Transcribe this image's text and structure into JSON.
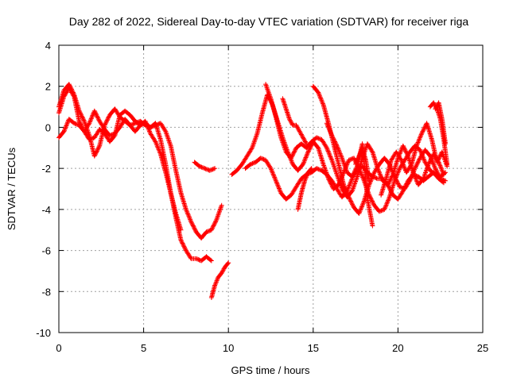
{
  "chart_data": {
    "type": "scatter",
    "title": "Day 282 of 2022, Sidereal Day-to-day VTEC variation (SDTVAR) for receiver riga",
    "xlabel": "GPS time / hours",
    "ylabel": "SDTVAR / TECUs",
    "xlim": [
      0,
      25
    ],
    "ylim": [
      -10,
      4
    ],
    "xticks": [
      0,
      5,
      10,
      15,
      20,
      25
    ],
    "yticks": [
      -10,
      -8,
      -6,
      -4,
      -2,
      0,
      2,
      4
    ],
    "grid": true,
    "marker": "+",
    "marker_color": "#ff0000",
    "series": [
      {
        "name": "track-a",
        "x": [
          0.0,
          0.3,
          0.6,
          0.9,
          1.2,
          1.5,
          1.8,
          2.1,
          2.4,
          2.7,
          3.0,
          3.3,
          3.6,
          3.9,
          4.2,
          4.5,
          4.8,
          5.1,
          5.4,
          5.7,
          6.0,
          6.3,
          6.6,
          6.9,
          7.2,
          7.5,
          7.8,
          8.1,
          8.4,
          8.7,
          9.0
        ],
        "y": [
          1.0,
          1.8,
          2.1,
          1.6,
          0.8,
          0.3,
          -0.4,
          -1.4,
          -0.9,
          0.1,
          0.6,
          0.9,
          0.5,
          0.3,
          0.1,
          0.2,
          0.3,
          0.1,
          0.0,
          0.2,
          -0.6,
          -1.8,
          -3.2,
          -4.4,
          -5.5,
          -6.0,
          -6.4,
          -6.4,
          -6.5,
          -6.3,
          -6.5
        ]
      },
      {
        "name": "track-b",
        "x": [
          0.0,
          0.3,
          0.6,
          0.9,
          1.2,
          1.5,
          1.8,
          2.1,
          2.4,
          2.7,
          3.0,
          3.3,
          3.6,
          3.9,
          4.2,
          4.5,
          4.8,
          5.1,
          5.4,
          5.7,
          6.0,
          6.3,
          6.6,
          6.9,
          7.2,
          7.5,
          7.8,
          8.1,
          8.4,
          8.7,
          9.0,
          9.3,
          9.6
        ],
        "y": [
          0.7,
          1.5,
          1.9,
          1.5,
          0.3,
          -0.2,
          0.2,
          0.8,
          0.3,
          -0.1,
          -0.4,
          -0.3,
          0.0,
          0.4,
          0.1,
          -0.2,
          0.1,
          0.2,
          0.0,
          0.1,
          0.2,
          -0.2,
          -0.9,
          -2.1,
          -3.2,
          -4.0,
          -4.6,
          -5.1,
          -5.4,
          -5.1,
          -5.0,
          -4.5,
          -3.8
        ]
      },
      {
        "name": "track-c",
        "x": [
          0.0,
          0.3,
          0.6,
          0.9,
          1.2,
          1.5,
          1.8,
          2.1,
          2.4,
          2.7,
          3.0,
          3.3,
          3.6,
          3.9,
          4.2,
          4.5,
          4.8,
          5.1,
          5.4,
          5.7,
          6.0,
          6.3,
          6.6,
          6.9,
          7.2
        ],
        "y": [
          -0.5,
          -0.2,
          0.4,
          0.2,
          0.1,
          -0.2,
          -0.6,
          -0.5,
          -0.1,
          -0.3,
          -0.7,
          -0.4,
          0.6,
          0.8,
          0.6,
          0.3,
          0.1,
          0.3,
          -0.3,
          -0.7,
          -1.3,
          -2.2,
          -3.2,
          -4.2,
          -5.0
        ]
      },
      {
        "name": "track-d",
        "x": [
          8.0,
          8.3,
          8.6,
          8.9,
          9.2
        ],
        "y": [
          -1.7,
          -1.9,
          -2.0,
          -2.1,
          -2.0
        ]
      },
      {
        "name": "track-e",
        "x": [
          9.0,
          9.2,
          9.4,
          9.6,
          9.8,
          10.0
        ],
        "y": [
          -8.3,
          -7.7,
          -7.3,
          -7.1,
          -6.8,
          -6.6
        ]
      },
      {
        "name": "track-f",
        "x": [
          10.2,
          10.5,
          10.8,
          11.1,
          11.4,
          11.7,
          12.0,
          12.3,
          12.6,
          12.9,
          13.2,
          13.5,
          13.8,
          14.1,
          14.4,
          14.7,
          15.0,
          15.3,
          15.6,
          15.9,
          16.2,
          16.5,
          16.8,
          17.1,
          17.4,
          17.7,
          18.0,
          18.3,
          18.6,
          18.9,
          19.2,
          19.5,
          19.8,
          20.1,
          20.4,
          20.7,
          21.0,
          21.3,
          21.6,
          21.9,
          22.2,
          22.5,
          22.8
        ],
        "y": [
          -2.3,
          -2.1,
          -1.8,
          -1.4,
          -1.0,
          -0.3,
          0.7,
          1.6,
          1.1,
          0.3,
          -0.5,
          -1.2,
          -1.8,
          -2.1,
          -1.8,
          -1.2,
          -0.7,
          -1.0,
          -1.8,
          -2.5,
          -3.0,
          -2.8,
          -2.2,
          -1.6,
          -1.5,
          -2.0,
          -2.6,
          -3.3,
          -3.8,
          -4.1,
          -4.0,
          -3.4,
          -2.6,
          -2.0,
          -1.6,
          -1.2,
          -0.9,
          -1.1,
          -1.7,
          -2.1,
          -2.3,
          -2.4,
          -2.2
        ]
      },
      {
        "name": "track-g",
        "x": [
          11.0,
          11.3,
          11.6,
          11.9,
          12.2,
          12.5,
          12.8,
          13.1,
          13.4,
          13.7,
          14.0,
          14.3,
          14.6,
          14.9,
          15.2,
          15.5,
          15.8,
          16.1,
          16.4,
          16.7,
          17.0,
          17.3,
          17.6,
          17.9,
          18.2,
          18.5,
          18.8,
          19.1,
          19.4,
          19.7,
          20.0,
          20.3,
          20.6,
          20.9,
          21.2,
          21.5,
          21.8,
          22.1,
          22.4,
          22.7
        ],
        "y": [
          -2.0,
          -1.8,
          -1.7,
          -1.5,
          -1.6,
          -2.0,
          -2.6,
          -3.2,
          -3.5,
          -3.3,
          -2.9,
          -2.5,
          -2.3,
          -2.2,
          -2.0,
          -2.1,
          -2.3,
          -2.6,
          -3.0,
          -3.4,
          -3.1,
          -2.5,
          -2.0,
          -1.9,
          -2.2,
          -2.4,
          -2.5,
          -2.5,
          -2.8,
          -3.3,
          -3.5,
          -3.1,
          -2.6,
          -2.3,
          -2.4,
          -2.6,
          -2.4,
          -2.2,
          -2.5,
          -2.7
        ]
      },
      {
        "name": "track-h",
        "x": [
          12.2,
          12.5,
          12.8,
          13.1,
          13.4,
          13.7,
          14.0,
          14.3,
          14.6,
          14.9,
          15.2,
          15.5,
          15.8,
          16.1,
          16.4,
          16.7,
          17.0,
          17.3,
          17.6,
          17.9,
          18.2,
          18.5,
          18.8,
          19.1,
          19.4,
          19.7,
          20.0,
          20.3,
          20.6,
          20.9,
          21.2,
          21.5,
          21.8,
          22.1,
          22.4,
          22.7
        ],
        "y": [
          2.1,
          1.4,
          0.5,
          -0.5,
          -1.2,
          -1.5,
          -1.0,
          -0.8,
          -1.0,
          -0.7,
          -0.5,
          -0.6,
          -1.0,
          -1.6,
          -2.3,
          -3.0,
          -3.4,
          -3.1,
          -2.4,
          -1.5,
          -0.8,
          -1.2,
          -2.0,
          -2.6,
          -2.8,
          -2.3,
          -1.5,
          -0.9,
          -1.4,
          -2.2,
          -2.8,
          -2.5,
          -1.8,
          -1.3,
          -1.7,
          -2.3
        ]
      },
      {
        "name": "track-i",
        "x": [
          13.2,
          13.4,
          13.6,
          13.8,
          14.0,
          14.2,
          14.4,
          14.6
        ],
        "y": [
          1.4,
          0.9,
          0.4,
          0.1,
          0.1,
          -0.2,
          -0.5,
          -0.8
        ]
      },
      {
        "name": "track-j",
        "x": [
          14.1,
          14.3,
          14.5,
          14.7,
          14.9
        ],
        "y": [
          -4.0,
          -3.2,
          -2.6,
          -2.2,
          -2.0
        ]
      },
      {
        "name": "track-k",
        "x": [
          15.0,
          15.3,
          15.6,
          15.9,
          16.2,
          16.5,
          16.8,
          17.1,
          17.4,
          17.7,
          18.0,
          18.3,
          18.6,
          18.9,
          19.2,
          19.5,
          19.8,
          20.1,
          20.4,
          20.7,
          21.0,
          21.3,
          21.6,
          21.9,
          22.2,
          22.5,
          22.8
        ],
        "y": [
          2.0,
          1.7,
          1.1,
          0.2,
          -0.8,
          -1.8,
          -2.8,
          -3.4,
          -3.9,
          -4.2,
          -3.6,
          -2.8,
          -2.2,
          -1.8,
          -1.5,
          -1.8,
          -2.4,
          -2.9,
          -3.0,
          -2.6,
          -2.0,
          -1.5,
          -1.1,
          -1.4,
          -2.0,
          -2.5,
          -2.6
        ]
      },
      {
        "name": "track-l",
        "x": [
          15.8,
          16.1,
          16.4,
          16.7,
          17.0,
          17.3,
          17.6,
          17.9,
          18.2,
          18.5
        ],
        "y": [
          0.2,
          -0.4,
          -0.9,
          -1.5,
          -2.2,
          -2.4,
          -1.9,
          -0.8,
          -3.5,
          -4.8
        ]
      },
      {
        "name": "track-m",
        "x": [
          17.5,
          17.7,
          17.9,
          18.1,
          18.3
        ],
        "y": [
          -1.8,
          -1.4,
          -1.0,
          -1.6,
          -2.6
        ]
      },
      {
        "name": "track-n",
        "x": [
          19.0,
          19.3,
          19.6,
          19.9,
          20.2,
          20.5,
          20.8,
          21.1,
          21.4,
          21.7,
          22.0,
          22.3,
          22.6,
          22.9
        ],
        "y": [
          -3.3,
          -2.5,
          -1.6,
          -1.2,
          -1.6,
          -2.2,
          -1.8,
          -0.9,
          -0.3,
          0.2,
          -0.6,
          -1.7,
          -1.2,
          -1.9
        ]
      },
      {
        "name": "track-o",
        "x": [
          21.9,
          22.1,
          22.3,
          22.5,
          22.7,
          22.9
        ],
        "y": [
          1.0,
          1.2,
          0.9,
          0.4,
          -0.6,
          -1.8
        ]
      },
      {
        "name": "track-p",
        "x": [
          22.2,
          22.4,
          22.6,
          22.8
        ],
        "y": [
          0.9,
          1.2,
          0.4,
          -0.8
        ]
      }
    ]
  }
}
